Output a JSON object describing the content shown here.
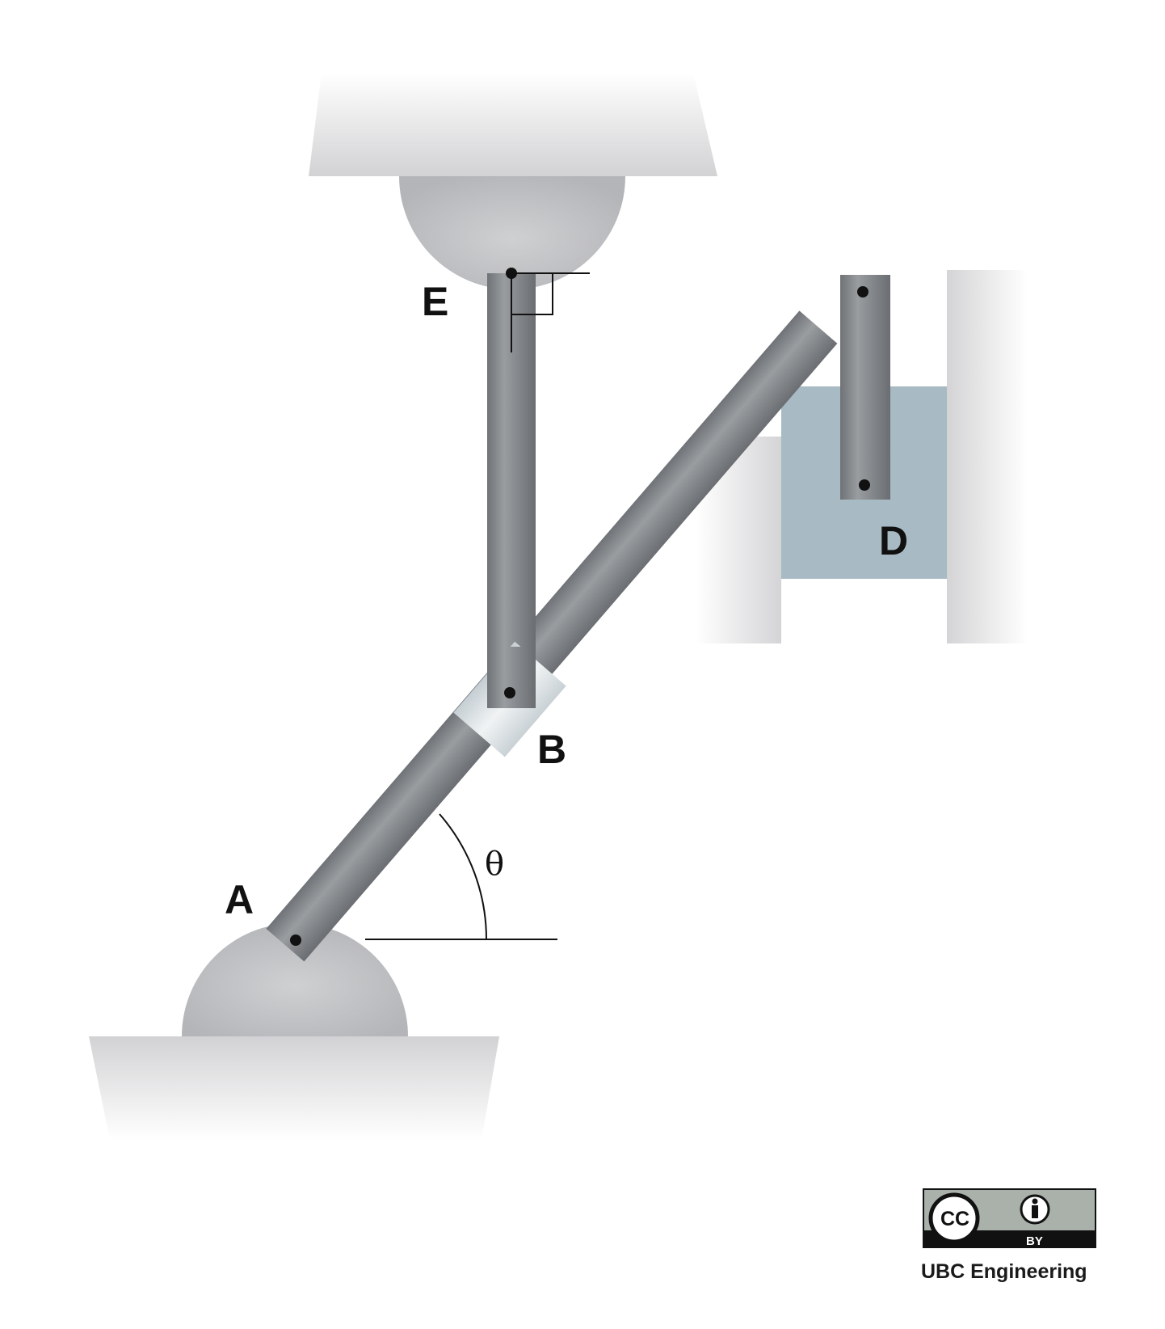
{
  "diagram": {
    "labels": {
      "a": "A",
      "b": "B",
      "d": "D",
      "e": "E",
      "angle": "θ"
    }
  },
  "license": {
    "badge": "CC",
    "badge_by": "BY",
    "credit": "UBC Engineering"
  },
  "colors": {
    "member_gray": "#8a8d90",
    "joint_gray": "#c4c5c7",
    "slider_block": "#a8bac3",
    "ground": "#e2e2e2"
  }
}
